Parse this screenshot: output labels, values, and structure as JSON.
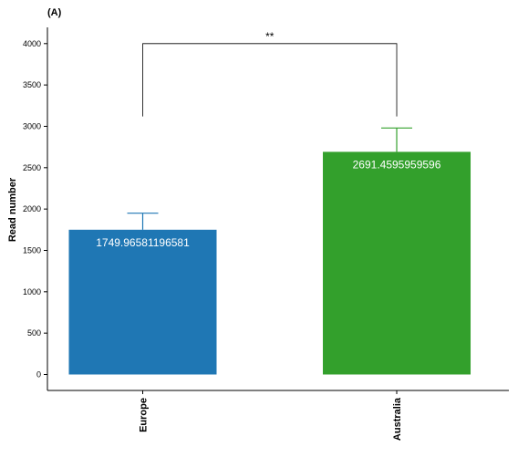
{
  "chart_data": {
    "type": "bar",
    "panel_label": "(A)",
    "title": "",
    "xlabel": "",
    "ylabel": "Read number",
    "ylim": [
      0,
      4000
    ],
    "yticks": [
      0,
      500,
      1000,
      1500,
      2000,
      2500,
      3000,
      3500,
      4000
    ],
    "grid": false,
    "legend": "none",
    "categories": [
      "Europe",
      "Australia"
    ],
    "values": [
      1749.96581196581,
      2691.4595959596
    ],
    "data_labels": [
      "1749.96581196581",
      "2691.4595959596"
    ],
    "error_upper": [
      1950,
      2980
    ],
    "colors": [
      "#1f77b4",
      "#33a02c"
    ],
    "significance": {
      "label": "**",
      "from": "Europe",
      "to": "Australia",
      "bracket_y": 4000,
      "left_drop_to": 3120,
      "right_drop_to": 3120
    }
  }
}
